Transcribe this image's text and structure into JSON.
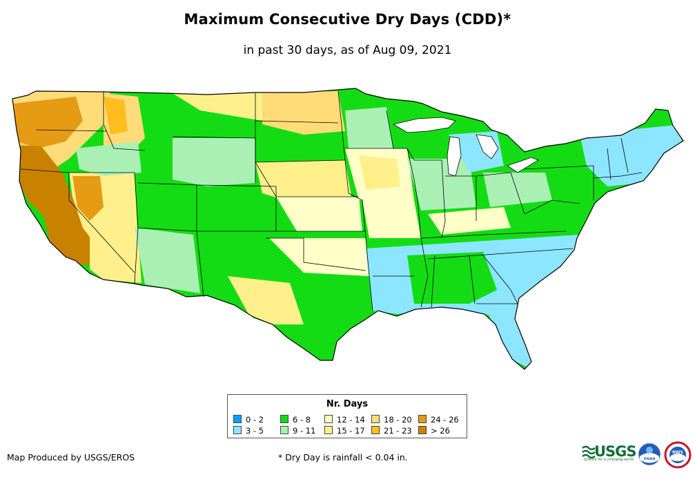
{
  "title": "Maximum Consecutive Dry Days (CDD)*",
  "subtitle": "in past 30 days, as of Aug 09, 2021",
  "legend": {
    "title": "Nr. Days",
    "items": [
      {
        "label": "0 - 2",
        "color": "#00a0ff"
      },
      {
        "label": "3 - 5",
        "color": "#8ce6ff"
      },
      {
        "label": "6 - 8",
        "color": "#14dc14"
      },
      {
        "label": "9 - 11",
        "color": "#aaf0b4"
      },
      {
        "label": "12 - 14",
        "color": "#ffffc8"
      },
      {
        "label": "15 - 17",
        "color": "#fff08c"
      },
      {
        "label": "18 - 20",
        "color": "#ffdc78"
      },
      {
        "label": "21 - 23",
        "color": "#ffbe1e"
      },
      {
        "label": "24 - 26",
        "color": "#e69b14"
      },
      {
        "label": "> 26",
        "color": "#c88200"
      }
    ]
  },
  "credit": "Map Produced by USGS/EROS",
  "footnote": "* Dry Day is rainfall < 0.04 in.",
  "logos": {
    "usgs_text": "USGS",
    "usgs_tagline": "science for a changing world",
    "noaa": "noaa",
    "nws": "NWS"
  },
  "colors": {
    "border": "#000000",
    "land_base": "#14dc14"
  }
}
